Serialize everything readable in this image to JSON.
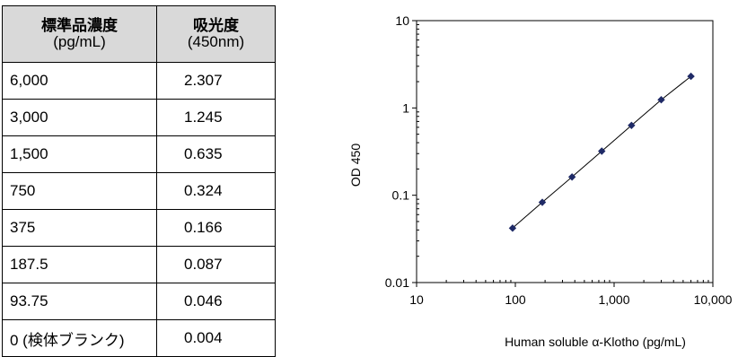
{
  "table": {
    "headers": [
      {
        "line1": "標準品濃度",
        "line2": "(pg/mL)"
      },
      {
        "line1": "吸光度",
        "line2": "(450nm)"
      }
    ],
    "rows": [
      {
        "conc": "6,000",
        "od": "2.307",
        "indent": 0
      },
      {
        "conc": "3,000",
        "od": "1.245",
        "indent": 0
      },
      {
        "conc": "1,500",
        "od": "0.635",
        "indent": 0
      },
      {
        "conc": "750",
        "od": "0.324",
        "indent": 26
      },
      {
        "conc": "375",
        "od": "0.166",
        "indent": 26
      },
      {
        "conc": "187.5",
        "od": "0.087",
        "indent": 26
      },
      {
        "conc": "93.75",
        "od": "0.046",
        "indent": 36
      },
      {
        "conc": "0 (検体ブランク)",
        "od": "0.004",
        "indent": -6
      }
    ]
  },
  "chart_data": {
    "type": "scatter",
    "xlabel": "Human soluble α-Klotho (pg/mL)",
    "ylabel": "OD 450",
    "xscale": "log",
    "yscale": "log",
    "xlim": [
      10,
      10000
    ],
    "ylim": [
      0.01,
      10
    ],
    "x_ticks": [
      {
        "value": 10,
        "label": "10"
      },
      {
        "value": 100,
        "label": "100"
      },
      {
        "value": 1000,
        "label": "1,000"
      },
      {
        "value": 10000,
        "label": "10,000"
      }
    ],
    "y_ticks": [
      {
        "value": 0.01,
        "label": "0.01"
      },
      {
        "value": 0.1,
        "label": "0.1"
      },
      {
        "value": 1,
        "label": "1"
      },
      {
        "value": 10,
        "label": "10"
      }
    ],
    "grid": false,
    "marker_color": "#1f2a66",
    "line_color": "#000000",
    "series": [
      {
        "x": [
          93.75,
          187.5,
          375,
          750,
          1500,
          3000,
          6000
        ],
        "y": [
          0.042,
          0.083,
          0.162,
          0.32,
          0.631,
          1.241,
          2.303
        ]
      }
    ]
  }
}
